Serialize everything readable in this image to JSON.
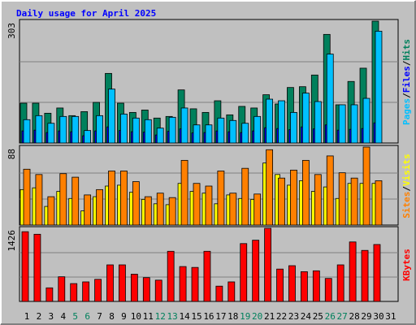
{
  "title": "Daily usage for April 2025",
  "separator": "/",
  "categories": [
    "1",
    "2",
    "3",
    "4",
    "5",
    "6",
    "7",
    "8",
    "9",
    "10",
    "11",
    "12",
    "13",
    "14",
    "15",
    "16",
    "17",
    "18",
    "19",
    "20",
    "21",
    "22",
    "23",
    "24",
    "25",
    "26",
    "27",
    "28",
    "29",
    "30",
    "31"
  ],
  "category_colors": [
    "#000000",
    "#000000",
    "#000000",
    "#000000",
    "#00805c",
    "#00805c",
    "#000000",
    "#000000",
    "#000000",
    "#000000",
    "#000000",
    "#00805c",
    "#00805c",
    "#000000",
    "#000000",
    "#000000",
    "#000000",
    "#000000",
    "#00805c",
    "#00805c",
    "#000000",
    "#000000",
    "#000000",
    "#000000",
    "#000000",
    "#00805c",
    "#00805c",
    "#000000",
    "#000000",
    "#000000",
    "#000000"
  ],
  "chart_data": [
    {
      "type": "bar",
      "ylim": [
        0,
        303
      ],
      "yticks": [
        303
      ],
      "legend_order": [
        2,
        1,
        0
      ],
      "series": [
        {
          "name": "Hits",
          "color": "#00805c",
          "values": [
            99,
            99,
            74,
            87,
            68,
            78,
            101,
            173,
            99,
            76,
            82,
            62,
            66,
            132,
            85,
            76,
            105,
            70,
            91,
            87,
            120,
            97,
            138,
            140,
            169,
            270,
            95,
            153,
            186,
            303,
            null
          ]
        },
        {
          "name": "Files",
          "color": "#0000ff",
          "values": [
            30,
            32,
            26,
            30,
            28,
            18,
            30,
            40,
            31,
            28,
            27,
            20,
            29,
            35,
            25,
            26,
            30,
            28,
            26,
            30,
            38,
            36,
            33,
            40,
            35,
            45,
            32,
            34,
            36,
            50,
            null
          ]
        },
        {
          "name": "Pages",
          "color": "#00c0ff",
          "values": [
            58,
            68,
            49,
            66,
            66,
            31,
            68,
            134,
            72,
            62,
            58,
            37,
            64,
            87,
            45,
            45,
            62,
            56,
            49,
            66,
            109,
            105,
            76,
            124,
            103,
            221,
            95,
            95,
            111,
            278,
            null
          ]
        }
      ]
    },
    {
      "type": "bar",
      "ylim": [
        0,
        88
      ],
      "yticks": [
        88
      ],
      "legend_order": [
        1,
        0
      ],
      "series": [
        {
          "name": "Visits",
          "color": "#ffff00",
          "values": [
            40,
            42,
            21,
            38,
            30,
            16,
            32,
            44,
            45,
            37,
            29,
            24,
            23,
            47,
            38,
            36,
            24,
            34,
            30,
            29,
            70,
            57,
            45,
            50,
            38,
            43,
            30,
            47,
            47,
            47,
            null
          ]
        },
        {
          "name": "Sites",
          "color": "#ff8000",
          "values": [
            63,
            57,
            32,
            58,
            54,
            34,
            40,
            61,
            61,
            49,
            32,
            36,
            31,
            73,
            47,
            44,
            61,
            36,
            64,
            35,
            85,
            53,
            62,
            73,
            57,
            78,
            59,
            53,
            88,
            50,
            null
          ]
        }
      ]
    },
    {
      "type": "bar",
      "ylim": [
        0,
        1426
      ],
      "yticks": [
        1426
      ],
      "legend_order": [
        0
      ],
      "series": [
        {
          "name": "KBytes",
          "color": "#ff0000",
          "values": [
            1360,
            1310,
            265,
            481,
            348,
            381,
            431,
            713,
            713,
            531,
            464,
            415,
            978,
            680,
            663,
            978,
            298,
            381,
            1128,
            1194,
            1426,
            631,
            697,
            580,
            597,
            448,
            713,
            1160,
            995,
            1110,
            null
          ]
        }
      ]
    }
  ]
}
